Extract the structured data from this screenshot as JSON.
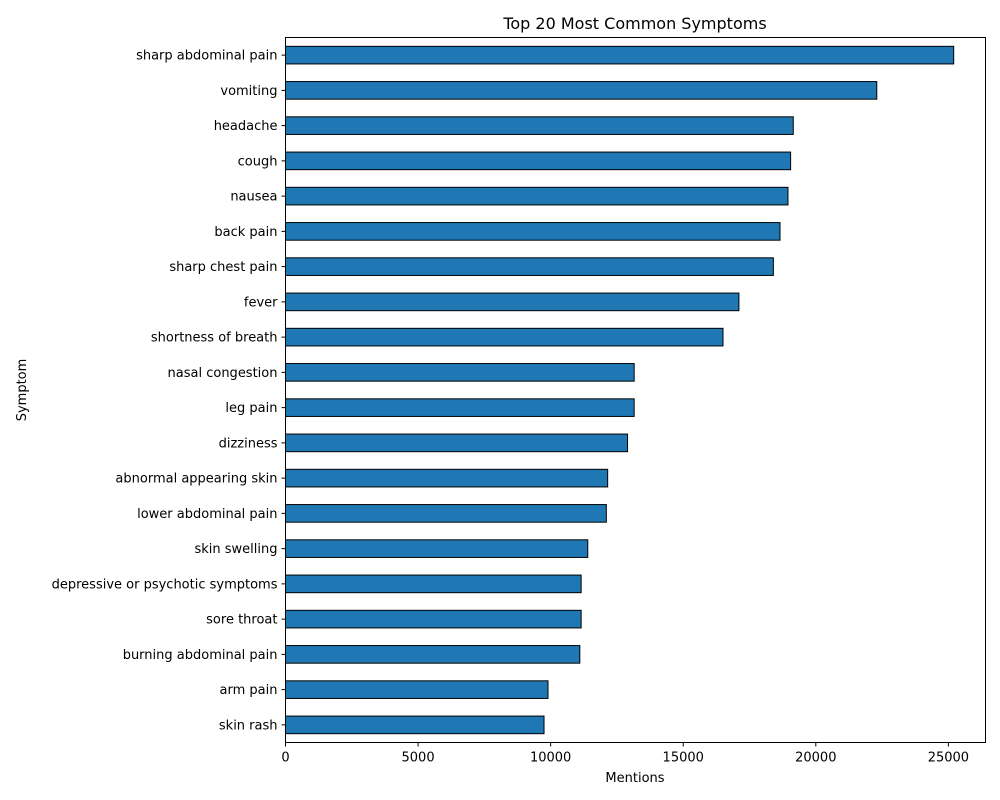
{
  "chart_data": {
    "type": "bar",
    "orientation": "horizontal",
    "title": "Top 20 Most Common Symptoms",
    "xlabel": "Mentions",
    "ylabel": "Symptom",
    "xlim": [
      0,
      26400
    ],
    "xticks": [
      0,
      5000,
      10000,
      15000,
      20000,
      25000
    ],
    "grid": false,
    "bar_color": "#1f77b4",
    "edge_color": "#000000",
    "categories": [
      "sharp abdominal pain",
      "vomiting",
      "headache",
      "cough",
      "nausea",
      "back pain",
      "sharp chest pain",
      "fever",
      "shortness of breath",
      "nasal congestion",
      "leg pain",
      "dizziness",
      "abnormal appearing skin",
      "lower abdominal pain",
      "skin swelling",
      "depressive or psychotic symptoms",
      "sore throat",
      "burning abdominal pain",
      "arm pain",
      "skin rash"
    ],
    "values": [
      25200,
      22300,
      19150,
      19050,
      18950,
      18650,
      18400,
      17100,
      16500,
      13150,
      13150,
      12900,
      12150,
      12100,
      11400,
      11150,
      11150,
      11100,
      9900,
      9750
    ]
  }
}
